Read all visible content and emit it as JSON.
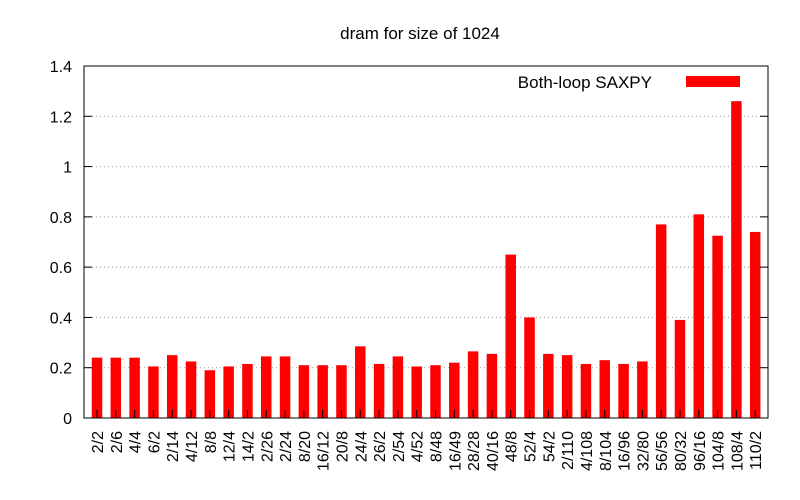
{
  "chart_data": {
    "type": "bar",
    "title": "dram for size of 1024",
    "xlabel": "",
    "ylabel": "",
    "ylim": [
      0,
      1.4
    ],
    "yticks": [
      "0",
      "0.2",
      "0.4",
      "0.6",
      "0.8",
      "1",
      "1.2",
      "1.4"
    ],
    "grid": true,
    "legend_position": "top-right",
    "categories": [
      "2/2",
      "2/6",
      "4/4",
      "6/2",
      "2/14",
      "4/12",
      "8/8",
      "12/4",
      "14/2",
      "2/26",
      "2/24",
      "8/20",
      "16/12",
      "20/8",
      "24/4",
      "26/2",
      "2/54",
      "4/52",
      "8/48",
      "16/49",
      "28/28",
      "40/16",
      "48/8",
      "52/4",
      "54/2",
      "2/110",
      "4/108",
      "8/104",
      "16/96",
      "32/80",
      "56/56",
      "80/32",
      "96/16",
      "104/8",
      "108/4",
      "110/2"
    ],
    "series": [
      {
        "name": "Both-loop SAXPY",
        "color": "#ff0000",
        "values": [
          0.24,
          0.24,
          0.24,
          0.205,
          0.25,
          0.225,
          0.19,
          0.205,
          0.215,
          0.245,
          0.245,
          0.21,
          0.21,
          0.21,
          0.285,
          0.215,
          0.245,
          0.205,
          0.21,
          0.22,
          0.265,
          0.255,
          0.65,
          0.4,
          0.255,
          0.25,
          0.215,
          0.23,
          0.215,
          0.225,
          0.77,
          0.39,
          0.81,
          0.725,
          1.26,
          0.74
        ]
      }
    ]
  }
}
